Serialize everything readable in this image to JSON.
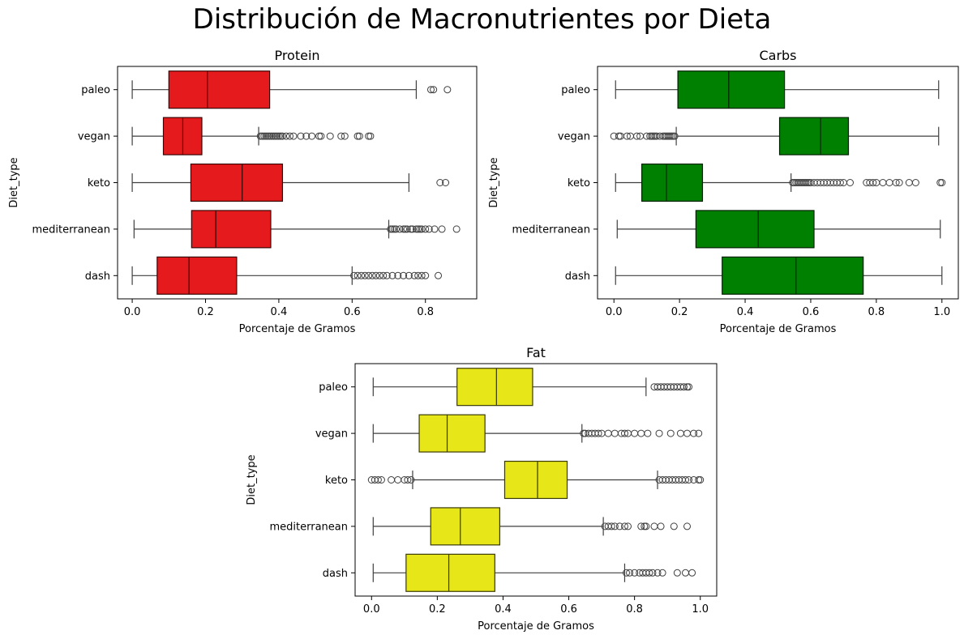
{
  "figure": {
    "title": "Distribución de Macronutrientes por Dieta"
  },
  "chart_data": [
    {
      "type": "boxplot",
      "orientation": "horizontal",
      "title": "Protein",
      "xlabel": "Porcentaje de Gramos",
      "ylabel": "Diet_type",
      "xlim": [
        -0.04,
        0.94
      ],
      "xticks": [
        0.0,
        0.2,
        0.4,
        0.6,
        0.8
      ],
      "xtick_labels": [
        "0.0",
        "0.2",
        "0.4",
        "0.6",
        "0.8"
      ],
      "categories": [
        "paleo",
        "vegan",
        "keto",
        "mediterranean",
        "dash"
      ],
      "color": "#e41a1c",
      "boxes": [
        {
          "category": "paleo",
          "whisker_low": 0.0,
          "q1": 0.1,
          "median": 0.205,
          "q3": 0.375,
          "whisker_high": 0.775,
          "outliers": [
            0.815,
            0.822,
            0.86
          ]
        },
        {
          "category": "vegan",
          "whisker_low": 0.0,
          "q1": 0.085,
          "median": 0.138,
          "q3": 0.19,
          "whisker_high": 0.345,
          "outliers": [
            0.35,
            0.355,
            0.36,
            0.365,
            0.37,
            0.375,
            0.38,
            0.385,
            0.39,
            0.395,
            0.4,
            0.405,
            0.41,
            0.42,
            0.43,
            0.44,
            0.46,
            0.475,
            0.49,
            0.51,
            0.515,
            0.54,
            0.57,
            0.58,
            0.615,
            0.62,
            0.645,
            0.65
          ]
        },
        {
          "category": "keto",
          "whisker_low": 0.0,
          "q1": 0.16,
          "median": 0.3,
          "q3": 0.41,
          "whisker_high": 0.755,
          "outliers": [
            0.84,
            0.855
          ]
        },
        {
          "category": "mediterranean",
          "whisker_low": 0.005,
          "q1": 0.162,
          "median": 0.228,
          "q3": 0.378,
          "whisker_high": 0.7,
          "outliers": [
            0.705,
            0.71,
            0.715,
            0.72,
            0.73,
            0.74,
            0.745,
            0.75,
            0.76,
            0.765,
            0.775,
            0.78,
            0.785,
            0.79,
            0.8,
            0.81,
            0.825,
            0.845,
            0.885
          ]
        },
        {
          "category": "dash",
          "whisker_low": 0.0,
          "q1": 0.068,
          "median": 0.155,
          "q3": 0.285,
          "whisker_high": 0.6,
          "outliers": [
            0.605,
            0.615,
            0.625,
            0.635,
            0.645,
            0.655,
            0.665,
            0.675,
            0.685,
            0.695,
            0.71,
            0.725,
            0.74,
            0.755,
            0.77,
            0.78,
            0.79,
            0.8,
            0.835
          ]
        }
      ]
    },
    {
      "type": "boxplot",
      "orientation": "horizontal",
      "title": "Carbs",
      "xlabel": "Porcentaje de Gramos",
      "ylabel": "Diet_type",
      "xlim": [
        -0.05,
        1.05
      ],
      "xticks": [
        0.0,
        0.2,
        0.4,
        0.6,
        0.8,
        1.0
      ],
      "xtick_labels": [
        "0.0",
        "0.2",
        "0.4",
        "0.6",
        "0.8",
        "1.0"
      ],
      "categories": [
        "paleo",
        "vegan",
        "keto",
        "mediterranean",
        "dash"
      ],
      "color": "#008000",
      "boxes": [
        {
          "category": "paleo",
          "whisker_low": 0.005,
          "q1": 0.195,
          "median": 0.35,
          "q3": 0.52,
          "whisker_high": 0.99,
          "outliers": []
        },
        {
          "category": "vegan",
          "whisker_low": 0.19,
          "q1": 0.505,
          "median": 0.63,
          "q3": 0.715,
          "whisker_high": 0.99,
          "outliers": [
            0.0,
            0.015,
            0.02,
            0.04,
            0.05,
            0.07,
            0.08,
            0.1,
            0.11,
            0.115,
            0.12,
            0.125,
            0.13,
            0.14,
            0.15,
            0.155,
            0.16,
            0.165,
            0.17,
            0.175,
            0.18,
            0.185
          ]
        },
        {
          "category": "keto",
          "whisker_low": 0.005,
          "q1": 0.085,
          "median": 0.16,
          "q3": 0.27,
          "whisker_high": 0.54,
          "outliers": [
            0.545,
            0.55,
            0.555,
            0.56,
            0.565,
            0.57,
            0.575,
            0.58,
            0.585,
            0.59,
            0.595,
            0.6,
            0.61,
            0.62,
            0.63,
            0.64,
            0.65,
            0.66,
            0.67,
            0.68,
            0.69,
            0.7,
            0.72,
            0.77,
            0.78,
            0.79,
            0.8,
            0.82,
            0.84,
            0.86,
            0.87,
            0.9,
            0.92,
            0.995,
            1.0
          ]
        },
        {
          "category": "mediterranean",
          "whisker_low": 0.01,
          "q1": 0.25,
          "median": 0.44,
          "q3": 0.61,
          "whisker_high": 0.995,
          "outliers": []
        },
        {
          "category": "dash",
          "whisker_low": 0.005,
          "q1": 0.33,
          "median": 0.555,
          "q3": 0.76,
          "whisker_high": 1.0,
          "outliers": []
        }
      ]
    },
    {
      "type": "boxplot",
      "orientation": "horizontal",
      "title": "Fat",
      "xlabel": "Porcentaje de Gramos",
      "ylabel": "Diet_type",
      "xlim": [
        -0.05,
        1.05
      ],
      "xticks": [
        0.0,
        0.2,
        0.4,
        0.6,
        0.8,
        1.0
      ],
      "xtick_labels": [
        "0.0",
        "0.2",
        "0.4",
        "0.6",
        "0.8",
        "1.0"
      ],
      "categories": [
        "paleo",
        "vegan",
        "keto",
        "mediterranean",
        "dash"
      ],
      "color": "#e6e619",
      "boxes": [
        {
          "category": "paleo",
          "whisker_low": 0.005,
          "q1": 0.26,
          "median": 0.38,
          "q3": 0.49,
          "whisker_high": 0.835,
          "outliers": [
            0.86,
            0.87,
            0.88,
            0.89,
            0.9,
            0.91,
            0.92,
            0.93,
            0.94,
            0.95,
            0.96,
            0.965
          ]
        },
        {
          "category": "vegan",
          "whisker_low": 0.005,
          "q1": 0.145,
          "median": 0.23,
          "q3": 0.345,
          "whisker_high": 0.64,
          "outliers": [
            0.645,
            0.65,
            0.66,
            0.67,
            0.68,
            0.69,
            0.7,
            0.72,
            0.74,
            0.76,
            0.77,
            0.78,
            0.8,
            0.82,
            0.84,
            0.875,
            0.91,
            0.94,
            0.96,
            0.98,
            0.995
          ]
        },
        {
          "category": "keto",
          "whisker_low": 0.125,
          "q1": 0.405,
          "median": 0.505,
          "q3": 0.595,
          "whisker_high": 0.87,
          "outliers": [
            0.0,
            0.01,
            0.02,
            0.03,
            0.06,
            0.08,
            0.1,
            0.11,
            0.12,
            0.875,
            0.885,
            0.895,
            0.905,
            0.915,
            0.925,
            0.935,
            0.945,
            0.955,
            0.965,
            0.98,
            0.995,
            1.0
          ]
        },
        {
          "category": "mediterranean",
          "whisker_low": 0.005,
          "q1": 0.18,
          "median": 0.27,
          "q3": 0.39,
          "whisker_high": 0.705,
          "outliers": [
            0.71,
            0.72,
            0.73,
            0.74,
            0.755,
            0.77,
            0.78,
            0.82,
            0.83,
            0.835,
            0.86,
            0.88,
            0.92,
            0.96
          ]
        },
        {
          "category": "dash",
          "whisker_low": 0.005,
          "q1": 0.105,
          "median": 0.235,
          "q3": 0.375,
          "whisker_high": 0.77,
          "outliers": [
            0.775,
            0.785,
            0.8,
            0.815,
            0.825,
            0.835,
            0.845,
            0.855,
            0.87,
            0.885,
            0.93,
            0.955,
            0.975
          ]
        }
      ]
    }
  ]
}
